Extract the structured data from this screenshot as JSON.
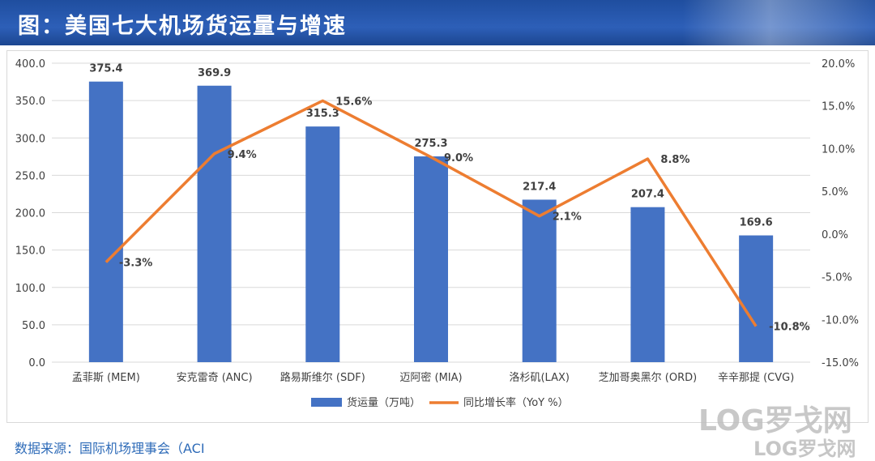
{
  "header": {
    "title": "图：美国七大机场货运量与增速"
  },
  "footer": {
    "source": "数据来源：国际机场理事会（ACI"
  },
  "watermark": {
    "text1": "LOG罗戈网",
    "text2": "LOG罗戈网"
  },
  "colors": {
    "bar": "#4472c4",
    "line": "#ed7d31",
    "title_bg": "#2555a8"
  },
  "chart_data": {
    "type": "bar",
    "categories": [
      "孟菲斯 (MEM)",
      "安克雷奇 (ANC)",
      "路易斯维尔 (SDF)",
      "迈阿密 (MIA)",
      "洛杉矶(LAX)",
      "芝加哥奥黑尔 (ORD)",
      "辛辛那提 (CVG)"
    ],
    "series": [
      {
        "name": "货运量（万吨）",
        "type": "bar",
        "axis": "left",
        "values": [
          375.4,
          369.9,
          315.3,
          275.3,
          217.4,
          207.4,
          169.6
        ],
        "labels": [
          "375.4",
          "369.9",
          "315.3",
          "275.3",
          "217.4",
          "207.4",
          "169.6"
        ]
      },
      {
        "name": "同比增长率（YoY %）",
        "type": "line",
        "axis": "right",
        "values": [
          -3.3,
          9.4,
          15.6,
          9.0,
          2.1,
          8.8,
          -10.8
        ],
        "labels": [
          "-3.3%",
          "9.4%",
          "15.6%",
          "9.0%",
          "2.1%",
          "8.8%",
          "-10.8%"
        ]
      }
    ],
    "ylim": [
      0,
      400
    ],
    "y2lim": [
      -15,
      20
    ],
    "yticks": [
      "0.0",
      "50.0",
      "100.0",
      "150.0",
      "200.0",
      "250.0",
      "300.0",
      "350.0",
      "400.0"
    ],
    "y2ticks": [
      "-15.0%",
      "-10.0%",
      "-5.0%",
      "0.0%",
      "5.0%",
      "10.0%",
      "15.0%",
      "20.0%"
    ],
    "grid": true,
    "legend": "bottom"
  }
}
